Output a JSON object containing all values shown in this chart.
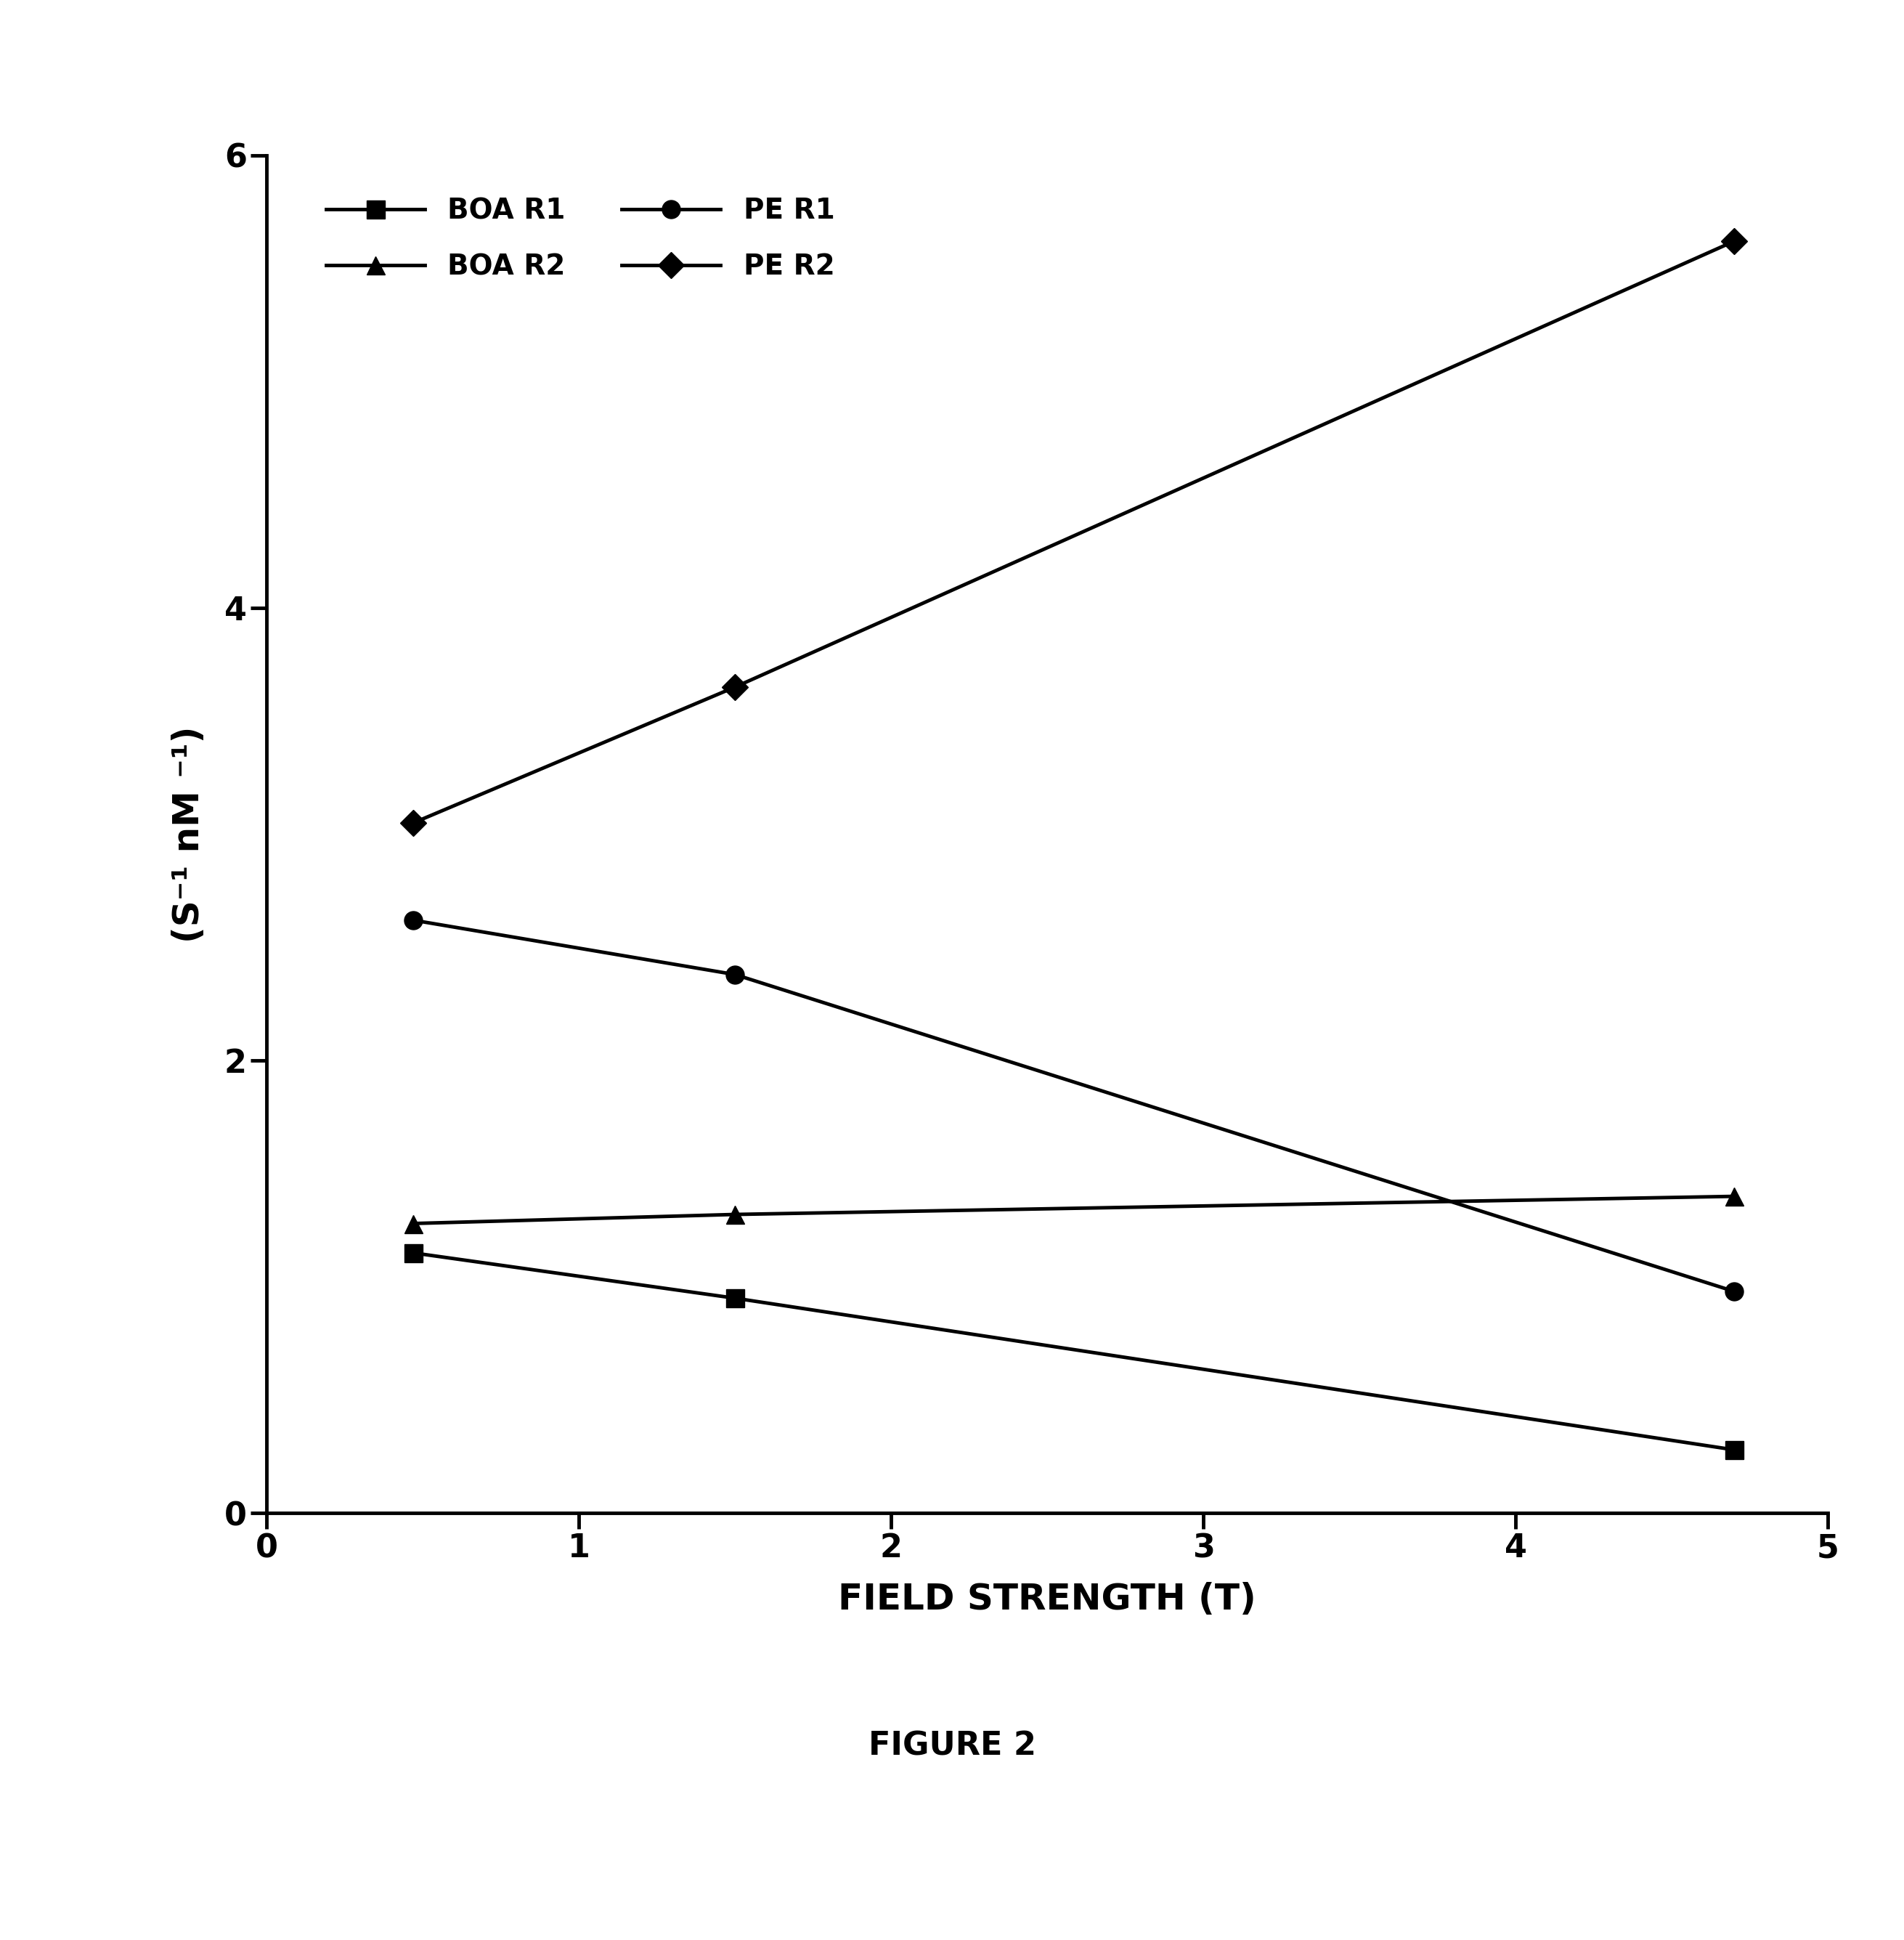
{
  "title": "FIGURE 2",
  "xlabel": "FIELD STRENGTH (T)",
  "ylabel": "(S⁻¹ nM ⁻¹)",
  "xlim": [
    0,
    5
  ],
  "ylim": [
    0,
    6
  ],
  "xticks": [
    0,
    1,
    2,
    3,
    4,
    5
  ],
  "yticks": [
    0,
    2,
    4,
    6
  ],
  "series": {
    "BOA R1": {
      "x": [
        0.47,
        1.5,
        4.7
      ],
      "y": [
        1.15,
        0.95,
        0.28
      ],
      "color": "#000000",
      "marker": "s",
      "markersize": 18,
      "linewidth": 3.5,
      "label": "BOA R1"
    },
    "BOA R2": {
      "x": [
        0.47,
        1.5,
        4.7
      ],
      "y": [
        1.28,
        1.32,
        1.4
      ],
      "color": "#000000",
      "marker": "^",
      "markersize": 18,
      "linewidth": 3.5,
      "label": "BOA R2"
    },
    "PE R1": {
      "x": [
        0.47,
        1.5,
        4.7
      ],
      "y": [
        2.62,
        2.38,
        0.98
      ],
      "color": "#000000",
      "marker": "o",
      "markersize": 18,
      "linewidth": 3.5,
      "label": "PE R1"
    },
    "PE R2": {
      "x": [
        0.47,
        1.5,
        4.7
      ],
      "y": [
        3.05,
        3.65,
        5.62
      ],
      "color": "#000000",
      "marker": "D",
      "markersize": 18,
      "linewidth": 3.5,
      "label": "PE R2"
    }
  },
  "legend_order": [
    "BOA R1",
    "BOA R2",
    "PE R1",
    "PE R2"
  ],
  "background_color": "#ffffff",
  "title_fontsize": 32,
  "label_fontsize": 36,
  "tick_fontsize": 32,
  "legend_fontsize": 28
}
